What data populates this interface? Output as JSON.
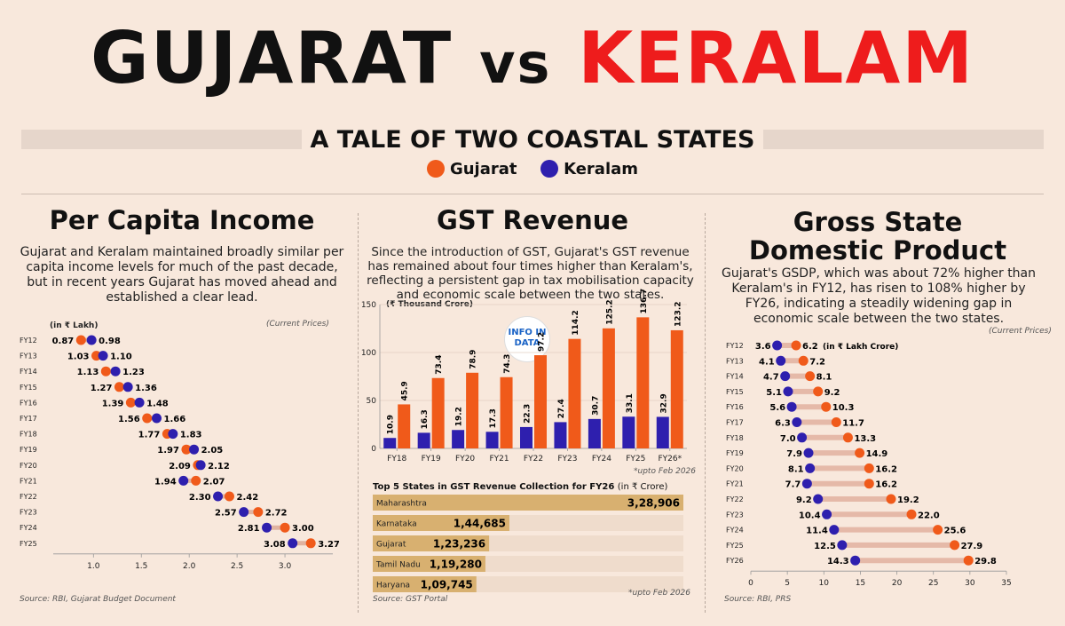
{
  "header": {
    "title_part1": "GUJARAT",
    "title_vs": "vs",
    "title_part2": "KERALAM",
    "subtitle": "A TALE OF TWO COASTAL STATES",
    "legend_gujarat": "Gujarat",
    "legend_keralam": "Keralam"
  },
  "colors": {
    "gujarat": "#f05a1a",
    "keralam": "#2e1fae",
    "top5": "#d8b070",
    "top5_track": "#efdccc",
    "background": "#f8e8dc"
  },
  "logo": {
    "line1": "INFO IN",
    "line2": "DATA"
  },
  "pci": {
    "title": "Per Capita Income",
    "desc": "Gujarat and Keralam maintained broadly similar per capita income levels for much of the past decade, but in recent years Gujarat has moved ahead and established a clear lead.",
    "unit": "(in ₹ Lakh)",
    "note": "(Current Prices)",
    "source": "Source: RBI, Gujarat Budget Document"
  },
  "gst": {
    "title": "GST Revenue",
    "desc": "Since the introduction of GST, Gujarat's GST revenue has remained about four times higher than Keralam's, reflecting a persistent gap in tax mobilisation capacity and economic scale between the two states.",
    "unit": "(₹ Thousand Crore)",
    "footnote": "*upto Feb 2026",
    "top5_title": "Top 5 States in GST Revenue Collection for FY26",
    "top5_unit": "(in ₹ Crore)",
    "top5_footnote": "*upto Feb 2026",
    "source": "Source: GST Portal"
  },
  "gsdp": {
    "title_line1": "Gross State",
    "title_line2": "Domestic Product",
    "desc": "Gujarat's GSDP, which was about 72% higher than Keralam's in FY12, has risen to 108% higher by FY26, indicating a steadily widening gap in economic scale between the two states.",
    "unit": "(in ₹ Lakh Crore)",
    "note": "(Current Prices)",
    "source": "Source: RBI, PRS"
  },
  "chart_data": [
    {
      "type": "scatter",
      "id": "per-capita-income",
      "title": "Per Capita Income",
      "ylabel": "(in ₹ Lakh)",
      "categories": [
        "FY12",
        "FY13",
        "FY14",
        "FY15",
        "FY16",
        "FY17",
        "FY18",
        "FY19",
        "FY20",
        "FY21",
        "FY22",
        "FY23",
        "FY24",
        "FY25"
      ],
      "series": [
        {
          "name": "Gujarat",
          "values": [
            0.87,
            1.03,
            1.13,
            1.27,
            1.39,
            1.56,
            1.77,
            1.97,
            2.09,
            2.07,
            2.42,
            2.72,
            3.0,
            3.27
          ]
        },
        {
          "name": "Keralam",
          "values": [
            0.98,
            1.1,
            1.23,
            1.36,
            1.48,
            1.66,
            1.83,
            2.05,
            2.12,
            1.94,
            2.3,
            2.57,
            2.81,
            3.08
          ]
        }
      ],
      "labels": [
        [
          "0.87",
          "0.98"
        ],
        [
          "1.03",
          "1.10"
        ],
        [
          "1.13",
          "1.23"
        ],
        [
          "1.27",
          "1.36"
        ],
        [
          "1.39",
          "1.48"
        ],
        [
          "1.56",
          "1.66"
        ],
        [
          "1.77",
          "1.83"
        ],
        [
          "1.97",
          "2.05"
        ],
        [
          "2.09",
          "2.12"
        ],
        [
          "2.07",
          "1.94"
        ],
        [
          "2.42",
          "2.30"
        ],
        [
          "2.72",
          "2.57"
        ],
        [
          "3.00",
          "2.81"
        ],
        [
          "3.27",
          "3.08"
        ]
      ],
      "xticks": [
        "1.0",
        "1.5",
        "2.0",
        "2.5",
        "3.0"
      ],
      "xtick_values": [
        1.0,
        1.5,
        2.0,
        2.5,
        3.0
      ],
      "xlim": [
        0.58,
        3.5
      ]
    },
    {
      "type": "bar",
      "id": "gst-revenue",
      "title": "GST Revenue",
      "ylabel": "(₹ Thousand Crore)",
      "categories": [
        "FY18",
        "FY19",
        "FY20",
        "FY21",
        "FY22",
        "FY23",
        "FY24",
        "FY25",
        "FY26*"
      ],
      "series": [
        {
          "name": "Keralam",
          "values": [
            10.9,
            16.3,
            19.2,
            17.3,
            22.3,
            27.4,
            30.7,
            33.1,
            32.9
          ]
        },
        {
          "name": "Gujarat",
          "values": [
            45.9,
            73.4,
            78.9,
            74.3,
            97.2,
            114.2,
            125.2,
            136.7,
            123.2
          ]
        }
      ],
      "labels": {
        "Keralam": [
          "10.9",
          "16.3",
          "19.2",
          "17.3",
          "22.3",
          "27.4",
          "30.7",
          "33.1",
          "32.9"
        ],
        "Gujarat": [
          "45.9",
          "73.4",
          "78.9",
          "74.3",
          "97.2",
          "114.2",
          "125.2",
          "136.7",
          "123.2"
        ]
      },
      "yticks": [
        "0",
        "50",
        "100",
        "150"
      ],
      "ytick_values": [
        0,
        50,
        100,
        150
      ],
      "ylim": [
        0,
        150
      ]
    },
    {
      "type": "bar",
      "id": "top5-gst",
      "title": "Top 5 States in GST Revenue Collection for FY26",
      "categories": [
        "Maharashtra",
        "Karnataka",
        "Gujarat",
        "Tamil Nadu",
        "Haryana"
      ],
      "values": [
        328906,
        144685,
        123236,
        119280,
        109745
      ],
      "labels": [
        "3,28,906",
        "1,44,685",
        "1,23,236",
        "1,19,280",
        "1,09,745"
      ],
      "xlim": [
        0,
        328906
      ]
    },
    {
      "type": "scatter",
      "id": "gsdp",
      "title": "Gross State Domestic Product",
      "ylabel": "(in ₹ Lakh Crore)",
      "categories": [
        "FY12",
        "FY13",
        "FY14",
        "FY15",
        "FY16",
        "FY17",
        "FY18",
        "FY19",
        "FY20",
        "FY21",
        "FY22",
        "FY23",
        "FY24",
        "FY25",
        "FY26"
      ],
      "series": [
        {
          "name": "Keralam",
          "values": [
            3.6,
            4.1,
            4.7,
            5.1,
            5.6,
            6.3,
            7.0,
            7.9,
            8.1,
            7.7,
            9.2,
            10.4,
            11.4,
            12.5,
            14.3
          ]
        },
        {
          "name": "Gujarat",
          "values": [
            6.2,
            7.2,
            8.1,
            9.2,
            10.3,
            11.7,
            13.3,
            14.9,
            16.2,
            16.2,
            19.2,
            22.0,
            25.6,
            27.9,
            29.8
          ]
        }
      ],
      "labels": {
        "Keralam": [
          "3.6",
          "4.1",
          "4.7",
          "5.1",
          "5.6",
          "6.3",
          "7.0",
          "7.9",
          "8.1",
          "7.7",
          "9.2",
          "10.4",
          "11.4",
          "12.5",
          "14.3"
        ],
        "Gujarat": [
          "6.2",
          "7.2",
          "8.1",
          "9.2",
          "10.3",
          "11.7",
          "13.3",
          "14.9",
          "16.2",
          "16.2",
          "19.2",
          "22.0",
          "25.6",
          "27.9",
          "29.8"
        ]
      },
      "xticks": [
        "0",
        "5",
        "10",
        "15",
        "20",
        "25",
        "30",
        "35"
      ],
      "xtick_values": [
        0,
        5,
        10,
        15,
        20,
        25,
        30,
        35
      ],
      "xlim": [
        0,
        35
      ]
    }
  ]
}
